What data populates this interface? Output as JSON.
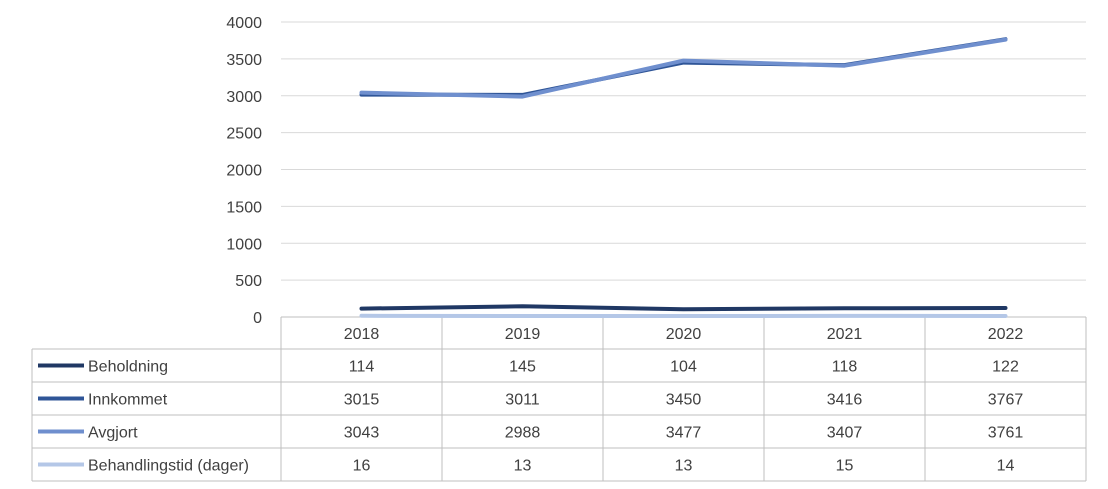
{
  "chart_data": {
    "type": "line",
    "categories": [
      "2018",
      "2019",
      "2020",
      "2021",
      "2022"
    ],
    "ylim": [
      0,
      4000
    ],
    "yticks": [
      "0",
      "500",
      "1000",
      "1500",
      "2000",
      "2500",
      "3000",
      "3500",
      "4000"
    ],
    "grid": true,
    "legend": "data-table-left",
    "series": [
      {
        "name": "Beholdning",
        "values": [
          114,
          145,
          104,
          118,
          122
        ],
        "color": "#203864"
      },
      {
        "name": "Innkommet",
        "values": [
          3015,
          3011,
          3450,
          3416,
          3767
        ],
        "color": "#2F5597"
      },
      {
        "name": "Avgjort",
        "values": [
          3043,
          2988,
          3477,
          3407,
          3761
        ],
        "color": "#6F8FCE"
      },
      {
        "name": "Behandlingstid (dager)",
        "values": [
          16,
          13,
          13,
          15,
          14
        ],
        "color": "#B4C7E7"
      }
    ]
  }
}
